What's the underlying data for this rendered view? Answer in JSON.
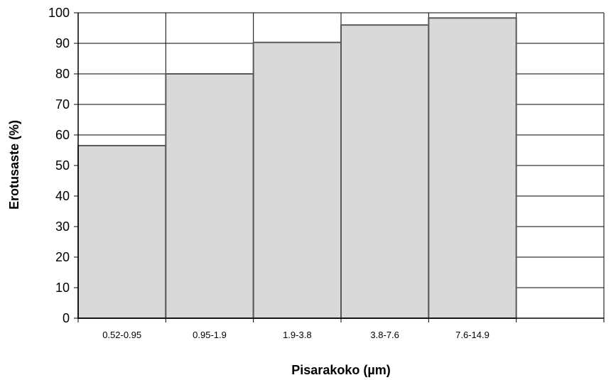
{
  "chart_data": {
    "type": "bar",
    "title": "",
    "xlabel": "Pisarakoko  (µm)",
    "ylabel": "Erotusaste  (%)",
    "categories": [
      "0.52-0.95",
      "0.95-1.9",
      "1.9-3.8",
      "3.8-7.6",
      "7.6-14.9",
      ""
    ],
    "values": [
      56.5,
      80,
      90.3,
      96,
      98.3,
      null
    ],
    "ylim": [
      0,
      100
    ],
    "yticks": [
      0,
      10,
      20,
      30,
      40,
      50,
      60,
      70,
      80,
      90,
      100
    ],
    "grid": true,
    "legend": "none",
    "bar_color": "#d9d9d9",
    "bar_edge_color": "#595959"
  }
}
